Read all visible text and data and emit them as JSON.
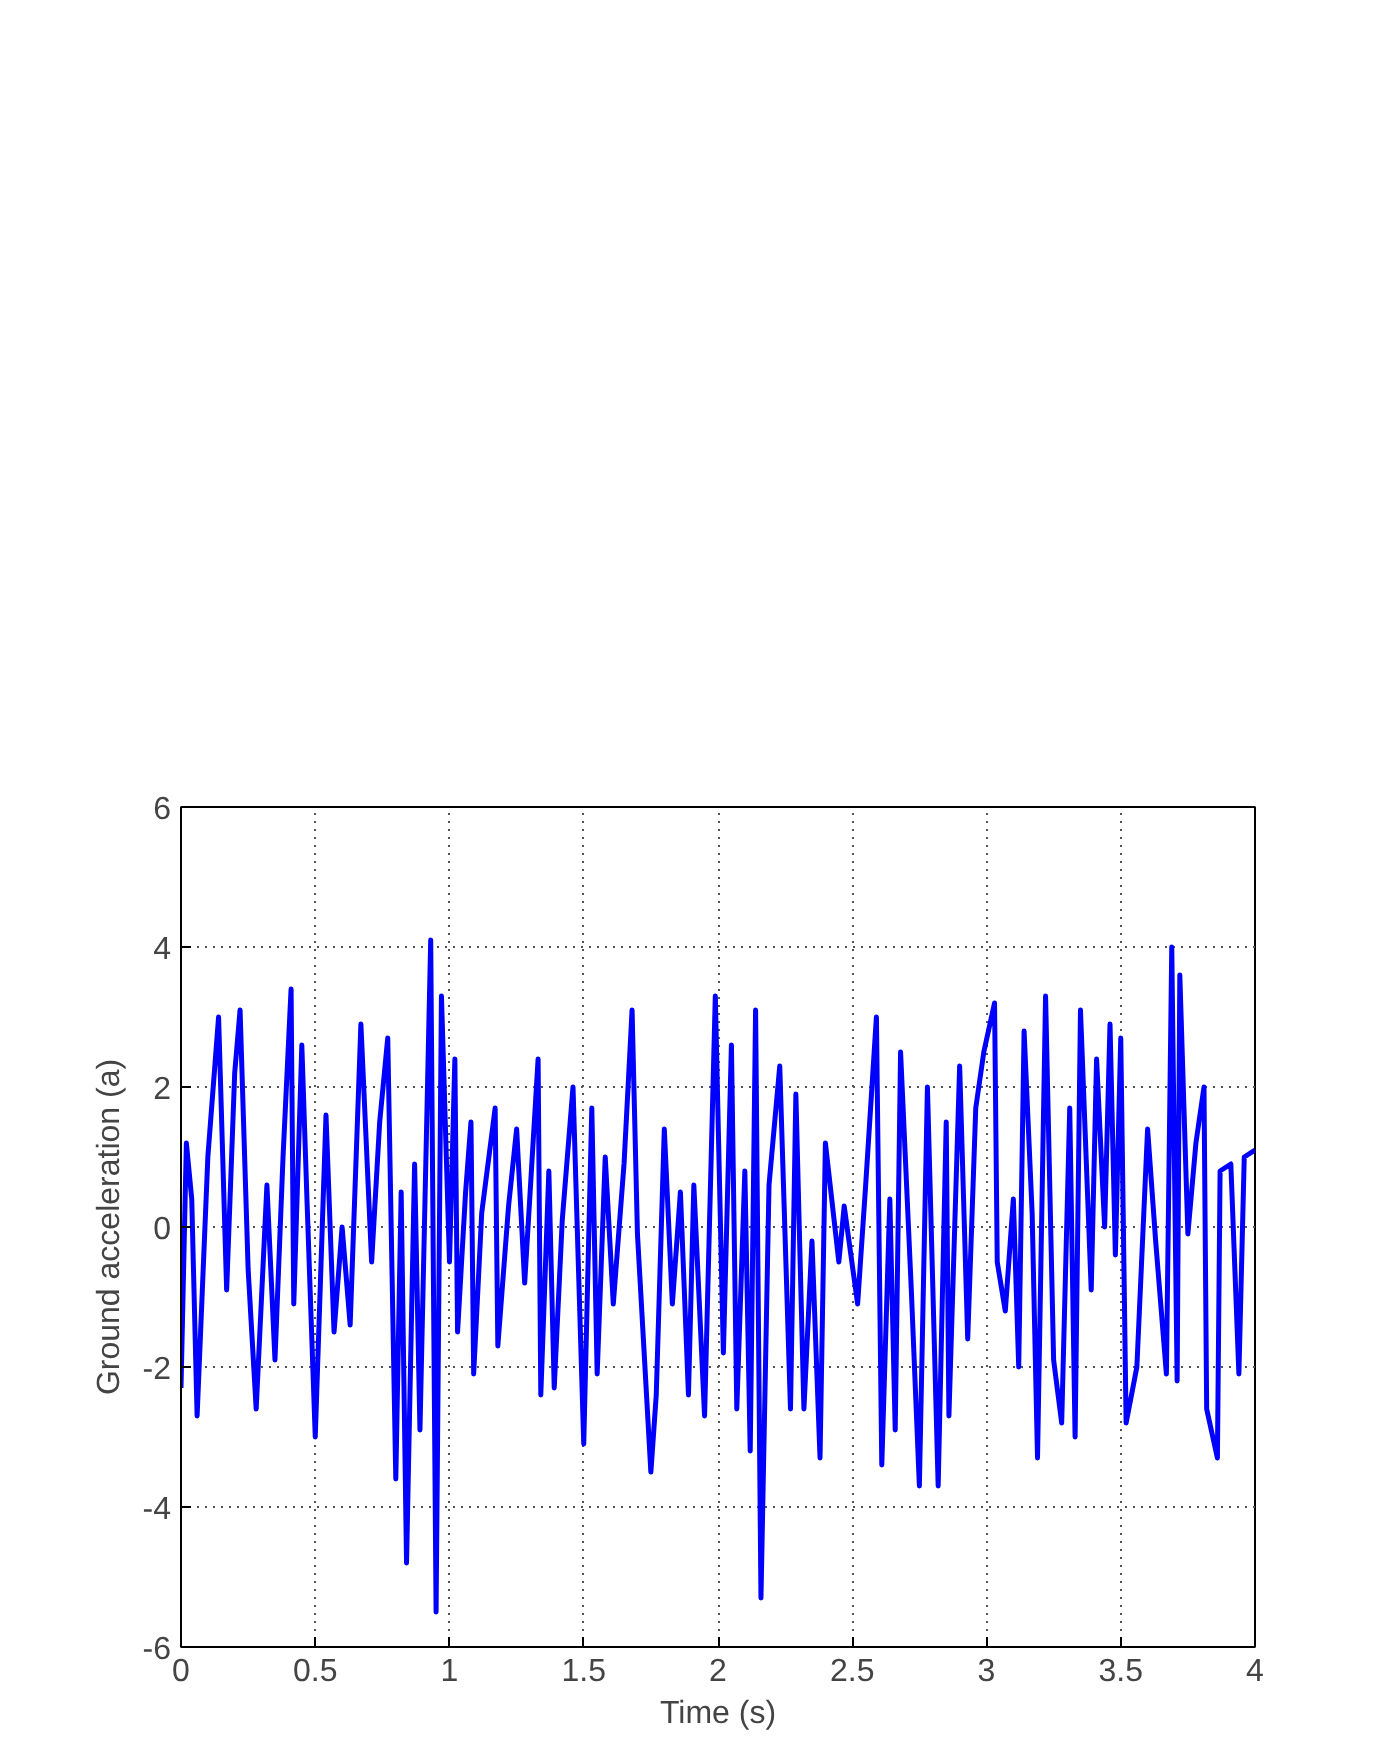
{
  "chart_data": {
    "type": "line",
    "xlabel": "Time (s)",
    "ylabel": "Ground acceleration (a)",
    "xlim": [
      0,
      4
    ],
    "ylim": [
      -6,
      6
    ],
    "xticks": [
      0,
      0.5,
      1,
      1.5,
      2,
      2.5,
      3,
      3.5,
      4
    ],
    "yticks": [
      -6,
      -4,
      -2,
      0,
      2,
      4,
      6
    ],
    "grid": true,
    "line_style": "solid",
    "x": [
      0,
      0.02,
      0.04,
      0.06,
      0.1,
      0.14,
      0.17,
      0.2,
      0.22,
      0.25,
      0.28,
      0.32,
      0.35,
      0.38,
      0.41,
      0.42,
      0.45,
      0.47,
      0.5,
      0.54,
      0.57,
      0.6,
      0.63,
      0.67,
      0.71,
      0.74,
      0.77,
      0.8,
      0.82,
      0.84,
      0.87,
      0.89,
      0.93,
      0.95,
      0.97,
      1.0,
      1.02,
      1.03,
      1.06,
      1.08,
      1.09,
      1.12,
      1.17,
      1.18,
      1.22,
      1.25,
      1.28,
      1.33,
      1.34,
      1.37,
      1.39,
      1.42,
      1.46,
      1.5,
      1.53,
      1.55,
      1.58,
      1.61,
      1.65,
      1.68,
      1.7,
      1.75,
      1.77,
      1.8,
      1.83,
      1.86,
      1.89,
      1.91,
      1.95,
      1.99,
      2.02,
      2.05,
      2.07,
      2.1,
      2.12,
      2.14,
      2.16,
      2.19,
      2.23,
      2.27,
      2.29,
      2.32,
      2.35,
      2.38,
      2.4,
      2.45,
      2.47,
      2.52,
      2.55,
      2.59,
      2.61,
      2.64,
      2.66,
      2.68,
      2.72,
      2.75,
      2.78,
      2.82,
      2.85,
      2.86,
      2.9,
      2.93,
      2.96,
      2.99,
      3.03,
      3.04,
      3.07,
      3.1,
      3.12,
      3.14,
      3.17,
      3.19,
      3.22,
      3.25,
      3.28,
      3.31,
      3.33,
      3.35,
      3.39,
      3.41,
      3.44,
      3.46,
      3.48,
      3.5,
      3.52,
      3.56,
      3.6,
      3.63,
      3.67,
      3.69,
      3.71,
      3.72,
      3.75,
      3.78,
      3.81,
      3.82,
      3.86,
      3.87,
      3.91,
      3.94,
      3.96,
      4.0
    ],
    "series": [
      {
        "color": "#0000ff",
        "values": [
          -2.3,
          1.2,
          0.4,
          -2.7,
          1.0,
          3.0,
          -0.9,
          2.2,
          3.1,
          -0.6,
          -2.6,
          0.6,
          -1.9,
          1.0,
          3.4,
          -1.1,
          2.6,
          0.3,
          -3.0,
          1.6,
          -1.5,
          0.0,
          -1.4,
          2.9,
          -0.5,
          1.5,
          2.7,
          -3.6,
          0.5,
          -4.8,
          0.9,
          -2.9,
          4.1,
          -5.5,
          3.3,
          -0.5,
          2.4,
          -1.5,
          0.5,
          1.5,
          -2.1,
          0.2,
          1.7,
          -1.7,
          0.3,
          1.4,
          -0.8,
          2.4,
          -2.4,
          0.8,
          -2.3,
          0.1,
          2.0,
          -3.1,
          1.7,
          -2.1,
          1.0,
          -1.1,
          0.9,
          3.1,
          -0.1,
          -3.5,
          -2.4,
          1.4,
          -1.1,
          0.5,
          -2.4,
          0.6,
          -2.7,
          3.3,
          -1.8,
          2.6,
          -2.6,
          0.8,
          -3.2,
          3.1,
          -5.3,
          0.6,
          2.3,
          -2.6,
          1.9,
          -2.6,
          -0.2,
          -3.3,
          1.2,
          -0.5,
          0.3,
          -1.1,
          0.6,
          3.0,
          -3.4,
          0.4,
          -2.9,
          2.5,
          -0.9,
          -3.7,
          2.0,
          -3.7,
          1.5,
          -2.7,
          2.3,
          -1.6,
          1.7,
          2.5,
          3.2,
          -0.5,
          -1.2,
          0.4,
          -2.0,
          2.8,
          0.2,
          -3.3,
          3.3,
          -1.9,
          -2.8,
          1.7,
          -3.0,
          3.1,
          -0.9,
          2.4,
          0.0,
          2.9,
          -0.4,
          2.7,
          -2.8,
          -2.0,
          1.4,
          -0.2,
          -2.1,
          4.0,
          -2.2,
          3.6,
          -0.1,
          1.2,
          2.0,
          -2.6,
          -3.3,
          0.8,
          0.9,
          -2.1,
          1.0,
          1.1
        ]
      }
    ]
  }
}
